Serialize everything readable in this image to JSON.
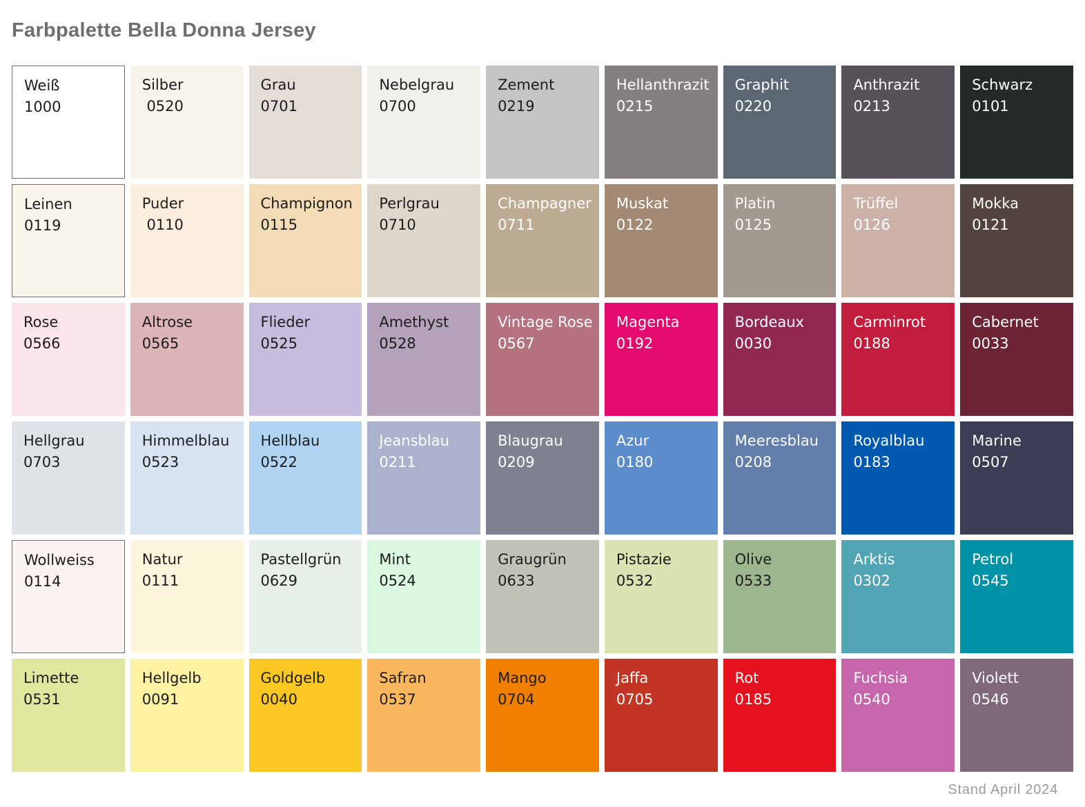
{
  "title": "Farbpalette Bella Donna Jersey",
  "footer": "Stand April 2024",
  "grid": {
    "columns": 9,
    "border_color": "#6E6E6E",
    "dark_text": "#1C1C1C",
    "light_text": "#FFFFFF",
    "swatches": [
      {
        "name": "Weiß",
        "number": "1000",
        "color": "#FFFFFF",
        "text": "dark",
        "border": true
      },
      {
        "name": "Silber",
        "number": " 0520",
        "color": "#F8F4E9",
        "text": "dark",
        "border": false
      },
      {
        "name": "Grau",
        "number": "0701",
        "color": "#E3DDD6",
        "text": "dark",
        "border": false
      },
      {
        "name": "Nebelgrau",
        "number": "0700",
        "color": "#F1F0EB",
        "text": "dark",
        "border": false
      },
      {
        "name": "Zement",
        "number": "0219",
        "color": "#C5C5C3",
        "text": "dark",
        "border": false
      },
      {
        "name": "Hellanthrazit",
        "number": "0215",
        "color": "#857F81",
        "text": "light",
        "border": false
      },
      {
        "name": "Graphit",
        "number": "0220",
        "color": "#5B6773",
        "text": "light",
        "border": false
      },
      {
        "name": "Anthrazit",
        "number": "0213",
        "color": "#575159",
        "text": "light",
        "border": false
      },
      {
        "name": "Schwarz",
        "number": "0101",
        "color": "#242A25",
        "text": "light",
        "border": false
      },
      {
        "name": "Leinen",
        "number": "0119",
        "color": "#FAF5EB",
        "text": "dark",
        "border": true
      },
      {
        "name": "Puder",
        "number": " 0110",
        "color": "#FCEEDD",
        "text": "dark",
        "border": false
      },
      {
        "name": "Champignon",
        "number": "0115",
        "color": "#F3DBB6",
        "text": "dark",
        "border": false
      },
      {
        "name": "Perlgrau",
        "number": "0710",
        "color": "#DED6C8",
        "text": "dark",
        "border": false
      },
      {
        "name": "Champagner",
        "number": "0711",
        "color": "#BEAB94",
        "text": "light",
        "border": false
      },
      {
        "name": "Muskat",
        "number": "0122",
        "color": "#A28A75",
        "text": "light",
        "border": false
      },
      {
        "name": "Platin",
        "number": "0125",
        "color": "#A3998E",
        "text": "light",
        "border": false
      },
      {
        "name": "Trüffel",
        "number": "0126",
        "color": "#CBB1A6",
        "text": "light",
        "border": false
      },
      {
        "name": "Mokka",
        "number": "0121",
        "color": "#54443E",
        "text": "light",
        "border": false
      },
      {
        "name": "Rose",
        "number": "0566",
        "color": "#FCE4EB",
        "text": "dark",
        "border": false
      },
      {
        "name": "Altrose",
        "number": "0565",
        "color": "#DDB5B7",
        "text": "dark",
        "border": false
      },
      {
        "name": "Flieder",
        "number": "0525",
        "color": "#C7BCDE",
        "text": "dark",
        "border": false
      },
      {
        "name": "Amethyst",
        "number": "0528",
        "color": "#B4A2BA",
        "text": "dark",
        "border": false
      },
      {
        "name": "Vintage Rose",
        "number": "0567",
        "color": "#B5727F",
        "text": "light",
        "border": false
      },
      {
        "name": "Magenta",
        "number": "0192",
        "color": "#E50B6E",
        "text": "light",
        "border": false
      },
      {
        "name": "Bordeaux",
        "number": "0030",
        "color": "#902851",
        "text": "light",
        "border": false
      },
      {
        "name": "Carminrot",
        "number": "0188",
        "color": "#C21D3C",
        "text": "light",
        "border": false
      },
      {
        "name": "Cabernet",
        "number": "0033",
        "color": "#6D2535",
        "text": "light",
        "border": false
      },
      {
        "name": "Hellgrau",
        "number": "0703",
        "color": "#DEE3E8",
        "text": "dark",
        "border": false
      },
      {
        "name": "Himmelblau",
        "number": "0523",
        "color": "#D8E3F2",
        "text": "dark",
        "border": false
      },
      {
        "name": "Hellblau",
        "number": "0522",
        "color": "#B0D4F1",
        "text": "dark",
        "border": false
      },
      {
        "name": "Jeansblau",
        "number": "0211",
        "color": "#AAB2CE",
        "text": "light",
        "border": false
      },
      {
        "name": "Blaugrau",
        "number": "0209",
        "color": "#7E8190",
        "text": "light",
        "border": false
      },
      {
        "name": "Azur",
        "number": "0180",
        "color": "#5D8CCB",
        "text": "light",
        "border": false
      },
      {
        "name": "Meeresblau",
        "number": "0208",
        "color": "#617FAA",
        "text": "light",
        "border": false
      },
      {
        "name": "Royalblau",
        "number": "0183",
        "color": "#0059AF",
        "text": "light",
        "border": false
      },
      {
        "name": "Marine",
        "number": "0507",
        "color": "#3C3C54",
        "text": "light",
        "border": false
      },
      {
        "name": "Wollweiss",
        "number": "0114",
        "color": "#FBF2F2",
        "text": "dark",
        "border": true
      },
      {
        "name": "Natur",
        "number": "0111",
        "color": "#FEF5DD",
        "text": "dark",
        "border": false
      },
      {
        "name": "Pastellgrün",
        "number": "0629",
        "color": "#E6F0E8",
        "text": "dark",
        "border": false
      },
      {
        "name": "Mint",
        "number": "0524",
        "color": "#DAF7DF",
        "text": "dark",
        "border": false
      },
      {
        "name": "Graugrün",
        "number": "0633",
        "color": "#C2C2B6",
        "text": "dark",
        "border": false
      },
      {
        "name": "Pistazie",
        "number": "0532",
        "color": "#DBE1B1",
        "text": "dark",
        "border": false
      },
      {
        "name": "Olive",
        "number": "0533",
        "color": "#9EB68E",
        "text": "dark",
        "border": false
      },
      {
        "name": "Arktis",
        "number": "0302",
        "color": "#51A5B5",
        "text": "light",
        "border": false
      },
      {
        "name": "Petrol",
        "number": "0545",
        "color": "#0092A7",
        "text": "light",
        "border": false
      },
      {
        "name": "Limette",
        "number": "0531",
        "color": "#E1E69E",
        "text": "dark",
        "border": false
      },
      {
        "name": "Hellgelb",
        "number": "0091",
        "color": "#FCF2A2",
        "text": "dark",
        "border": false
      },
      {
        "name": "Goldgelb",
        "number": "0040",
        "color": "#FAC723",
        "text": "dark",
        "border": false
      },
      {
        "name": "Safran",
        "number": "0537",
        "color": "#FBB75E",
        "text": "dark",
        "border": false
      },
      {
        "name": "Mango",
        "number": "0704",
        "color": "#F17F00",
        "text": "dark",
        "border": false
      },
      {
        "name": "Jaffa",
        "number": "0705",
        "color": "#C23423",
        "text": "light",
        "border": false
      },
      {
        "name": "Rot",
        "number": "0185",
        "color": "#E4111E",
        "text": "light",
        "border": false
      },
      {
        "name": "Fuchsia",
        "number": "0540",
        "color": "#C667AE",
        "text": "light",
        "border": false
      },
      {
        "name": "Violett",
        "number": "0546",
        "color": "#7F687A",
        "text": "light",
        "border": false
      }
    ]
  }
}
